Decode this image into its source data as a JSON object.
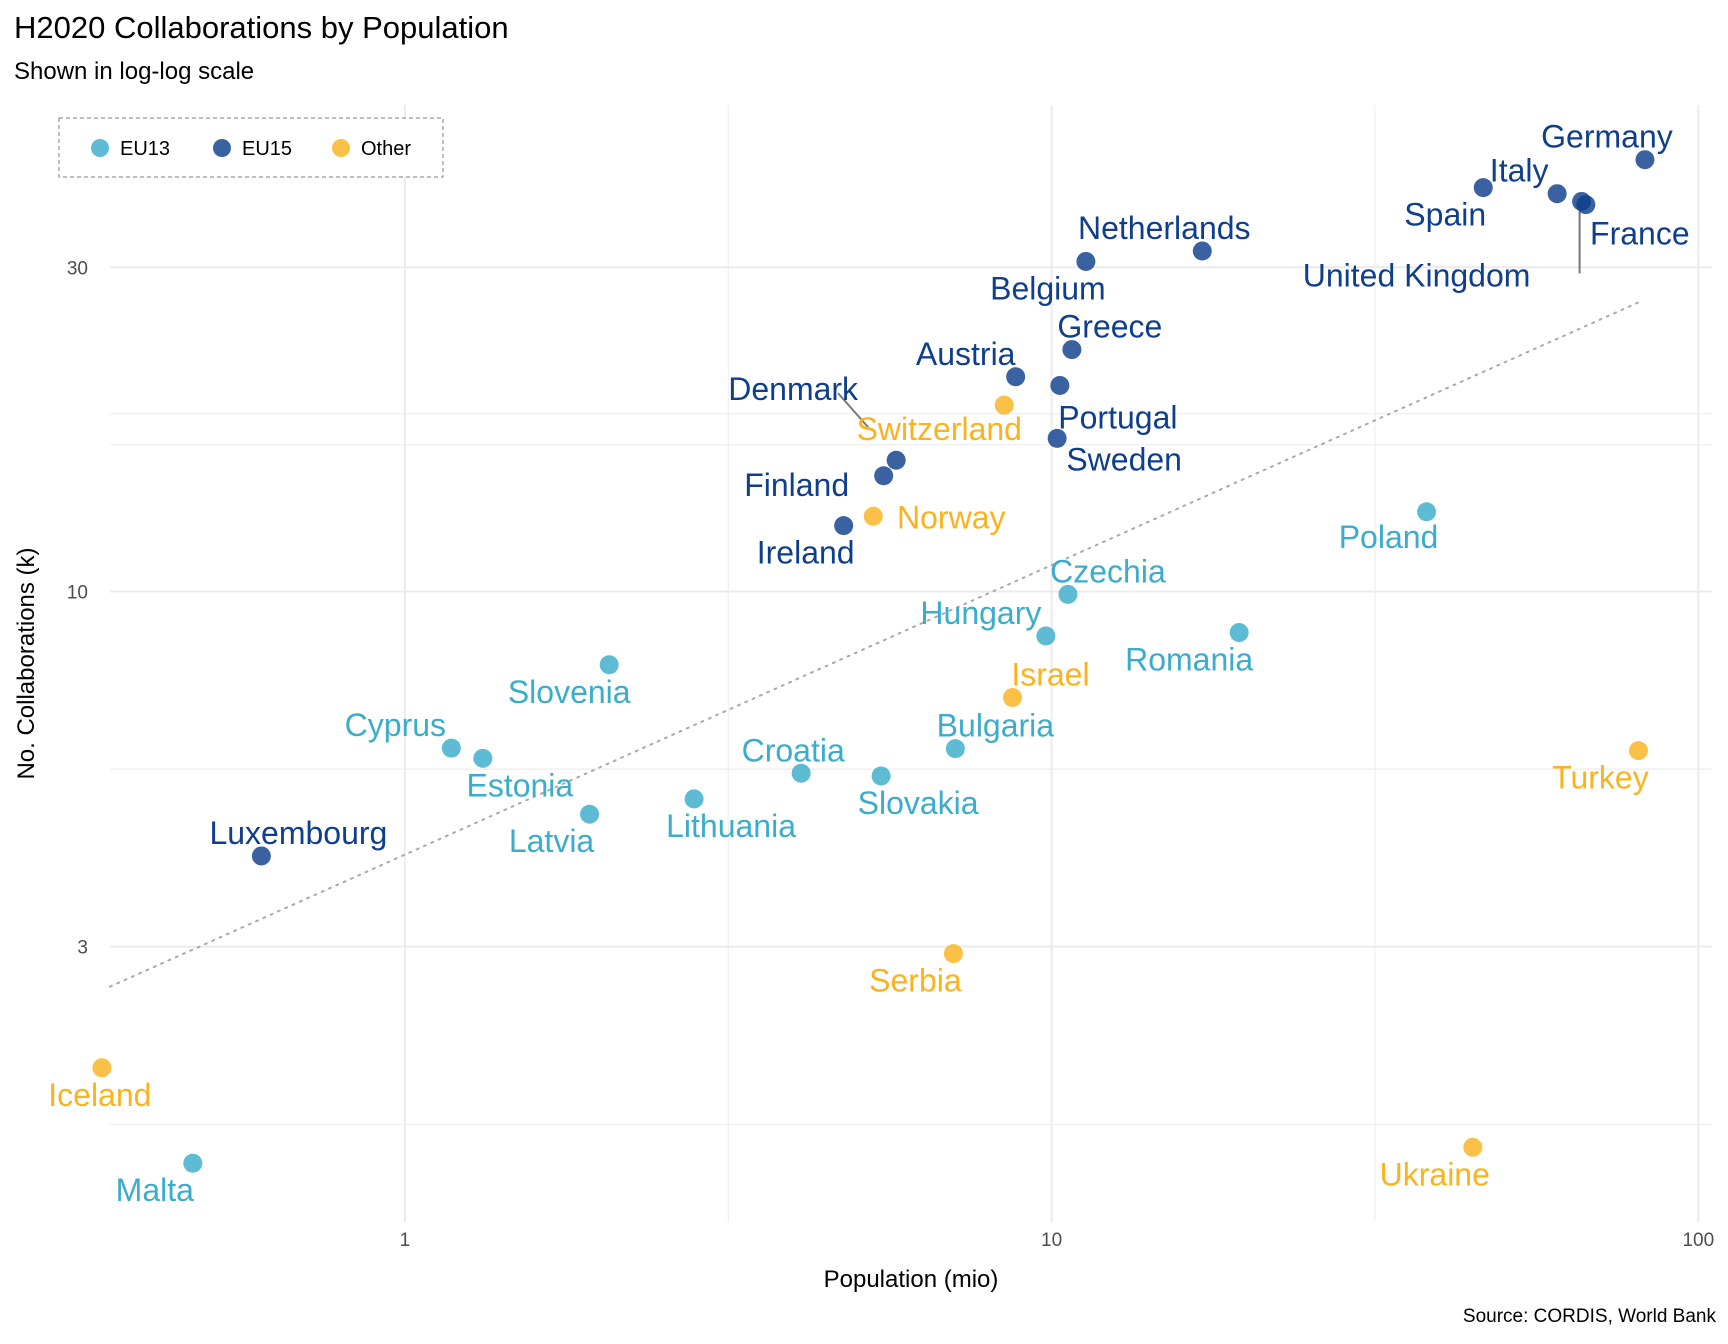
{
  "chart_data": {
    "type": "scatter",
    "title": "H2020 Collaborations by Population",
    "subtitle": "Shown in log-log scale",
    "caption": "Source: CORDIS, World Bank",
    "xlabel": "Population (mio)",
    "ylabel": "No. Collaborations (k)",
    "x_scale": "log10",
    "y_scale": "log10",
    "xlim": [
      0.35,
      105
    ],
    "ylim": [
      1.18,
      52
    ],
    "x_ticks": [
      1,
      10,
      100
    ],
    "x_tick_labels": [
      "1",
      "10",
      "100"
    ],
    "y_ticks": [
      3,
      10,
      30
    ],
    "y_tick_labels": [
      "3",
      "10",
      "30"
    ],
    "grid": true,
    "legend": {
      "placement": "top-left",
      "border": "dashed",
      "entries": [
        {
          "name": "EU13",
          "color": "#3BACCB"
        },
        {
          "name": "EU15",
          "color": "#0F3F8C"
        },
        {
          "name": "Other",
          "color": "#FAB31E"
        }
      ]
    },
    "trend_line": {
      "style": "dotted",
      "color": "#aaaaaa",
      "x": [
        0.35,
        82
      ],
      "y": [
        2.62,
        26.8
      ]
    },
    "series": [
      {
        "name": "EU13",
        "color": "#3BACCB",
        "points": [
          {
            "label": "Poland",
            "x": 38,
            "y": 13.1
          },
          {
            "label": "Czechia",
            "x": 10.6,
            "y": 9.9
          },
          {
            "label": "Hungary",
            "x": 9.8,
            "y": 8.6
          },
          {
            "label": "Romania",
            "x": 19.5,
            "y": 8.7
          },
          {
            "label": "Slovenia",
            "x": 2.07,
            "y": 7.8
          },
          {
            "label": "Bulgaria",
            "x": 7.1,
            "y": 5.87
          },
          {
            "label": "Cyprus",
            "x": 1.18,
            "y": 5.88
          },
          {
            "label": "Estonia",
            "x": 1.32,
            "y": 5.68
          },
          {
            "label": "Croatia",
            "x": 4.1,
            "y": 5.4
          },
          {
            "label": "Slovakia",
            "x": 5.45,
            "y": 5.35
          },
          {
            "label": "Lithuania",
            "x": 2.8,
            "y": 4.95
          },
          {
            "label": "Latvia",
            "x": 1.93,
            "y": 4.7
          },
          {
            "label": "Malta",
            "x": 0.47,
            "y": 1.44
          }
        ]
      },
      {
        "name": "EU15",
        "color": "#0F3F8C",
        "points": [
          {
            "label": "Germany",
            "x": 82.7,
            "y": 43.2
          },
          {
            "label": "Italy",
            "x": 60.5,
            "y": 38.5
          },
          {
            "label": "Spain",
            "x": 46.5,
            "y": 39.3
          },
          {
            "label": "United Kingdom",
            "x": 66,
            "y": 37.5
          },
          {
            "label": "France",
            "x": 67,
            "y": 37.1
          },
          {
            "label": "Netherlands",
            "x": 17.1,
            "y": 31.7
          },
          {
            "label": "Belgium",
            "x": 11.3,
            "y": 30.6
          },
          {
            "label": "Greece",
            "x": 10.75,
            "y": 22.7
          },
          {
            "label": "Austria",
            "x": 8.8,
            "y": 20.7
          },
          {
            "label": "Portugal",
            "x": 10.3,
            "y": 20.1
          },
          {
            "label": "Sweden",
            "x": 10.2,
            "y": 16.8
          },
          {
            "label": "Denmark",
            "x": 5.75,
            "y": 15.6
          },
          {
            "label": "Finland",
            "x": 5.5,
            "y": 14.8
          },
          {
            "label": "Ireland",
            "x": 4.77,
            "y": 12.5
          },
          {
            "label": "Luxembourg",
            "x": 0.6,
            "y": 4.08
          }
        ]
      },
      {
        "name": "Other",
        "color": "#FAB31E",
        "points": [
          {
            "label": "Switzerland",
            "x": 8.45,
            "y": 18.8
          },
          {
            "label": "Norway",
            "x": 5.3,
            "y": 12.9
          },
          {
            "label": "Israel",
            "x": 8.7,
            "y": 6.98
          },
          {
            "label": "Turkey",
            "x": 80.8,
            "y": 5.83
          },
          {
            "label": "Serbia",
            "x": 7.05,
            "y": 2.93
          },
          {
            "label": "Iceland",
            "x": 0.34,
            "y": 1.99
          },
          {
            "label": "Ukraine",
            "x": 44.8,
            "y": 1.52
          }
        ]
      }
    ]
  }
}
